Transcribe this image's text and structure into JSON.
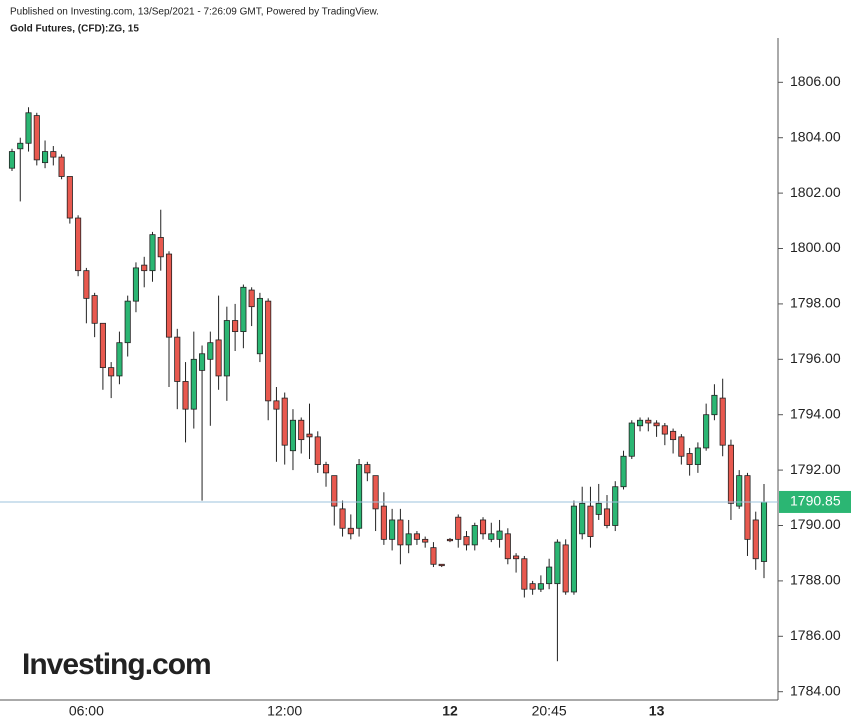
{
  "chart_data": {
    "type": "candlestick",
    "title": "Published on Investing.com, 13/Sep/2021 - 7:26:09 GMT, Powered by TradingView.",
    "subtitle": "Gold Futures, (CFD):ZG, 15",
    "watermark": "Investing.com",
    "categories": [
      null,
      null,
      null,
      null,
      null,
      null,
      null,
      null,
      null,
      "06:00",
      null,
      null,
      null,
      null,
      null,
      null,
      null,
      null,
      null,
      null,
      null,
      null,
      null,
      null,
      null,
      null,
      null,
      null,
      null,
      null,
      null,
      null,
      null,
      "12:00",
      null,
      null,
      null,
      null,
      null,
      null,
      null,
      null,
      null,
      null,
      null,
      null,
      null,
      null,
      null,
      null,
      null,
      null,
      null,
      "12",
      null,
      null,
      null,
      null,
      null,
      null,
      null,
      null,
      null,
      null,
      null,
      "20:45",
      null,
      null,
      null,
      null,
      null,
      null,
      null,
      null,
      null,
      null,
      null,
      null,
      "13",
      null,
      null,
      null,
      null,
      null,
      null,
      null,
      null,
      null,
      null,
      null,
      null,
      null
    ],
    "up_color": "#2bb673",
    "down_color": "#e8594f",
    "series": [
      {
        "open": [
          1802.9,
          1803.6,
          1803.8,
          1804.8,
          1803.1,
          1803.5,
          1803.3,
          1802.6,
          1801.1,
          1799.2,
          1798.3,
          1797.3,
          1795.7,
          1795.4,
          1796.6,
          1798.1,
          1799.4,
          1799.2,
          1800.4,
          1799.8,
          1796.8,
          1795.2,
          1794.2,
          1795.6,
          1796.0,
          1796.7,
          1795.4,
          1797.4,
          1797.0,
          1798.5,
          1796.2,
          1798.1,
          1794.5,
          1794.6,
          1792.7,
          1793.8,
          1793.3,
          1793.2,
          1792.2,
          1791.8,
          1790.6,
          1789.9,
          1789.9,
          1792.2,
          1791.8,
          1790.7,
          1789.5,
          1790.2,
          1789.3,
          1789.7,
          1789.5,
          1789.2,
          1788.6,
          1789.5,
          1790.3,
          1789.6,
          1789.3,
          1790.2,
          1789.5,
          1789.5,
          1789.7,
          1788.9,
          1788.8,
          1787.9,
          1787.7,
          1787.9,
          1787.9,
          1789.3,
          1787.6,
          1789.7,
          1790.7,
          1790.4,
          1790.6,
          1790.0,
          1791.4,
          1792.5,
          1793.6,
          1793.8,
          1793.7,
          1793.6,
          1793.4,
          1793.2,
          1792.6,
          1792.2,
          1792.8,
          1794.0,
          1794.6,
          1792.9,
          1790.7,
          1791.8,
          1790.2,
          1788.7
        ],
        "high": [
          1803.6,
          1804.0,
          1805.1,
          1804.9,
          1803.9,
          1803.7,
          1803.4,
          1802.6,
          1801.2,
          1799.3,
          1798.4,
          1797.3,
          1795.9,
          1797.0,
          1798.3,
          1799.5,
          1799.7,
          1800.6,
          1801.4,
          1799.9,
          1797.1,
          1795.9,
          1797.0,
          1796.5,
          1797.0,
          1798.3,
          1797.9,
          1798.0,
          1798.7,
          1798.6,
          1798.4,
          1798.2,
          1795.0,
          1794.8,
          1794.2,
          1793.9,
          1794.4,
          1793.4,
          1792.3,
          1791.8,
          1790.9,
          1790.4,
          1792.4,
          1792.3,
          1791.8,
          1791.2,
          1790.6,
          1790.6,
          1790.2,
          1789.8,
          1789.6,
          1789.4,
          1788.6,
          1789.55,
          1790.4,
          1789.8,
          1790.1,
          1790.3,
          1790.1,
          1790.2,
          1789.9,
          1789.0,
          1788.9,
          1788.0,
          1788.2,
          1788.8,
          1789.5,
          1789.5,
          1790.9,
          1791.4,
          1791.4,
          1791.5,
          1791.1,
          1791.6,
          1792.7,
          1793.8,
          1793.9,
          1793.9,
          1793.8,
          1793.7,
          1793.5,
          1793.3,
          1792.8,
          1793.0,
          1794.4,
          1795.1,
          1795.3,
          1793.1,
          1792.0,
          1791.9,
          1790.5,
          1791.5
        ],
        "low": [
          1802.8,
          1801.7,
          1803.5,
          1803.0,
          1802.9,
          1803.0,
          1802.5,
          1800.9,
          1799.0,
          1797.3,
          1796.8,
          1794.9,
          1794.6,
          1795.1,
          1796.1,
          1797.7,
          1798.6,
          1798.8,
          1799.2,
          1795.0,
          1794.2,
          1793.0,
          1793.5,
          1790.9,
          1793.6,
          1794.9,
          1794.5,
          1796.3,
          1796.4,
          1797.2,
          1795.9,
          1793.8,
          1792.3,
          1792.2,
          1792.0,
          1792.6,
          1792.4,
          1791.9,
          1791.4,
          1790.0,
          1789.6,
          1789.5,
          1789.6,
          1791.6,
          1789.8,
          1789.3,
          1789.1,
          1788.6,
          1789.0,
          1789.3,
          1789.2,
          1788.5,
          1788.5,
          1789.4,
          1789.2,
          1789.1,
          1789.1,
          1789.5,
          1789.4,
          1789.2,
          1788.6,
          1788.3,
          1787.4,
          1787.5,
          1787.6,
          1787.7,
          1785.1,
          1787.5,
          1787.5,
          1789.5,
          1789.2,
          1790.2,
          1789.9,
          1789.8,
          1791.3,
          1792.4,
          1793.4,
          1793.4,
          1793.2,
          1792.9,
          1792.6,
          1792.2,
          1791.8,
          1791.9,
          1792.7,
          1793.8,
          1792.5,
          1790.2,
          1790.6,
          1788.9,
          1788.4,
          1788.1
        ],
        "close": [
          1803.5,
          1803.8,
          1804.9,
          1803.2,
          1803.5,
          1803.3,
          1802.6,
          1801.1,
          1799.2,
          1798.2,
          1797.3,
          1795.7,
          1795.4,
          1796.6,
          1798.1,
          1799.3,
          1799.2,
          1800.5,
          1799.7,
          1796.8,
          1795.2,
          1794.2,
          1796.0,
          1796.2,
          1796.6,
          1795.4,
          1797.4,
          1797.0,
          1798.6,
          1797.9,
          1798.2,
          1794.5,
          1794.2,
          1792.9,
          1793.8,
          1793.1,
          1793.2,
          1792.2,
          1791.9,
          1790.7,
          1789.9,
          1789.7,
          1792.2,
          1791.9,
          1790.6,
          1789.5,
          1790.2,
          1789.3,
          1789.7,
          1789.5,
          1789.4,
          1788.6,
          1788.55,
          1789.45,
          1789.5,
          1789.3,
          1790.0,
          1789.7,
          1789.7,
          1789.8,
          1788.8,
          1788.8,
          1787.7,
          1787.7,
          1787.9,
          1788.5,
          1789.4,
          1787.6,
          1790.7,
          1790.8,
          1789.6,
          1790.8,
          1790.0,
          1791.4,
          1792.5,
          1793.7,
          1793.8,
          1793.7,
          1793.6,
          1793.3,
          1793.1,
          1792.5,
          1792.2,
          1792.8,
          1794.0,
          1794.7,
          1792.9,
          1790.8,
          1791.8,
          1789.5,
          1788.8,
          1790.85
        ]
      }
    ],
    "last_price": 1790.85,
    "ylim": [
      1783.7,
      1807.6
    ],
    "yticks": [
      {
        "value": 1784,
        "label": "1784.00"
      },
      {
        "value": 1786,
        "label": "1786.00"
      },
      {
        "value": 1788,
        "label": "1788.00"
      },
      {
        "value": 1790,
        "label": "1790.00"
      },
      {
        "value": 1792,
        "label": "1792.00"
      },
      {
        "value": 1794,
        "label": "1794.00"
      },
      {
        "value": 1796,
        "label": "1796.00"
      },
      {
        "value": 1798,
        "label": "1798.00"
      },
      {
        "value": 1800,
        "label": "1800.00"
      },
      {
        "value": 1802,
        "label": "1802.00"
      },
      {
        "value": 1804,
        "label": "1804.00"
      },
      {
        "value": 1806,
        "label": "1806.00"
      }
    ]
  }
}
